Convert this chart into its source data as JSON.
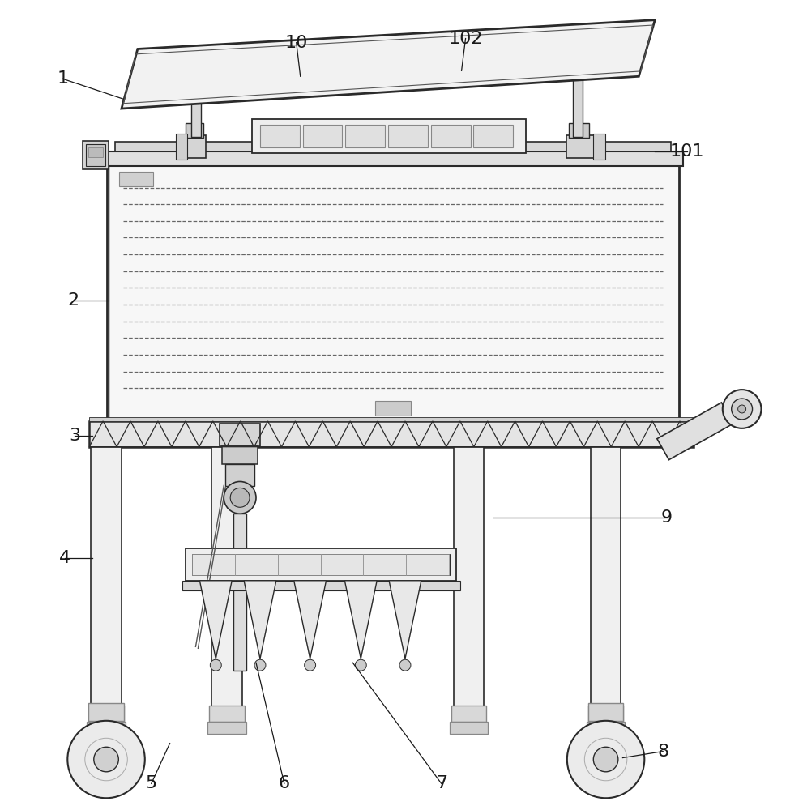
{
  "bg_color": "#ffffff",
  "line_color": "#2a2a2a",
  "lw_main": 1.4,
  "lw_thin": 0.8,
  "ann_fontsize": 15,
  "ann_color": "#1a1a1a"
}
